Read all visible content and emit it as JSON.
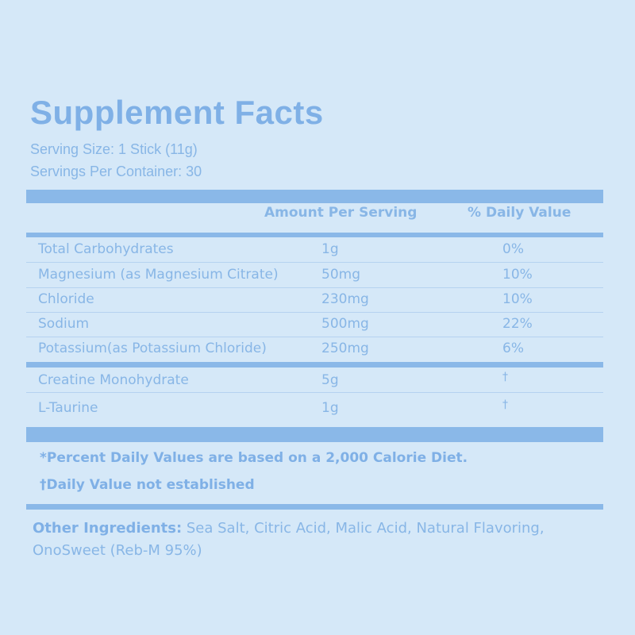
{
  "title": "Supplement Facts",
  "serving_size": "Serving Size: 1 Stick (11g)",
  "servings_per_container": "Servings Per Container: 30",
  "columns": {
    "amount": "Amount Per Serving",
    "daily_value": "% Daily Value"
  },
  "nutrients": [
    {
      "name": "Total Carbohydrates",
      "amount": "1g",
      "dv": "0%"
    },
    {
      "name": "Magnesium (as Magnesium Citrate)",
      "amount": "50mg",
      "dv": "10%"
    },
    {
      "name": "Chloride",
      "amount": "230mg",
      "dv": "10%"
    },
    {
      "name": "Sodium",
      "amount": "500mg",
      "dv": "22%"
    },
    {
      "name": "Potassium(as Potassium Chloride)",
      "amount": "250mg",
      "dv": "6%"
    }
  ],
  "other_nutrients": [
    {
      "name": "Creatine Monohydrate",
      "amount": "5g",
      "dv": "†"
    },
    {
      "name": "L-Taurine",
      "amount": "1g",
      "dv": "†"
    }
  ],
  "footnotes": {
    "percent_dv": "*Percent Daily Values are based on a 2,000 Calorie Diet.",
    "not_established": "†Daily Value not established"
  },
  "other_ingredients": {
    "label": "Other Ingredients:",
    "text": " Sea Salt, Citric Acid, Malic Acid, Natural Flavoring, OnoSweet (Reb-M 95%)"
  }
}
